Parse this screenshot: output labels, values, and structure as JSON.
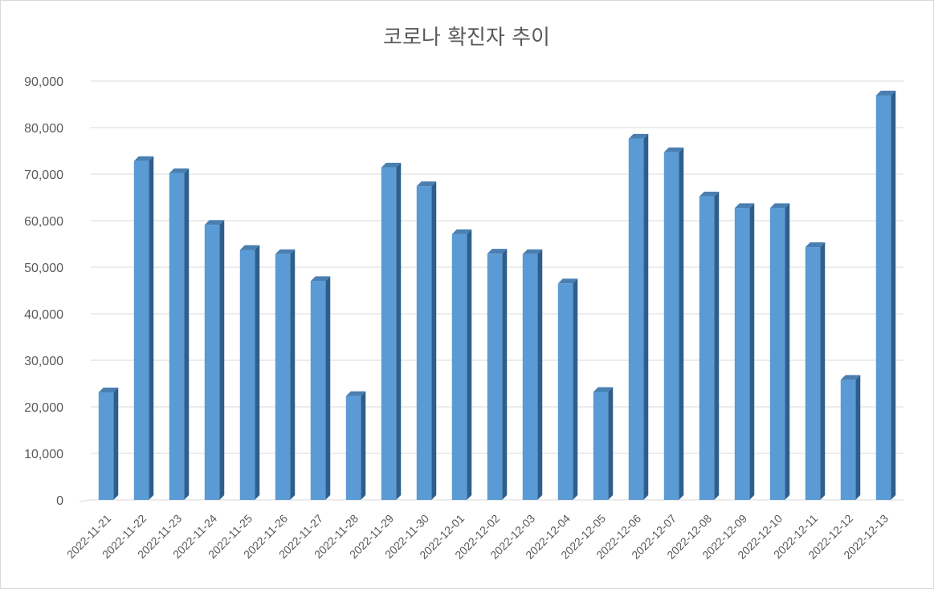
{
  "chart_data": {
    "type": "bar",
    "title": "코로나 확진자 추이",
    "xlabel": "",
    "ylabel": "",
    "categories": [
      "2022-11-21",
      "2022-11-22",
      "2022-11-23",
      "2022-11-24",
      "2022-11-25",
      "2022-11-26",
      "2022-11-27",
      "2022-11-28",
      "2022-11-29",
      "2022-11-30",
      "2022-12-01",
      "2022-12-02",
      "2022-12-03",
      "2022-12-04",
      "2022-12-05",
      "2022-12-06",
      "2022-12-07",
      "2022-12-08",
      "2022-12-09",
      "2022-12-10",
      "2022-12-11",
      "2022-12-12",
      "2022-12-13"
    ],
    "values": [
      23100,
      72800,
      70200,
      59100,
      53700,
      52800,
      47000,
      22300,
      71400,
      67400,
      57100,
      52900,
      52800,
      46500,
      23200,
      77600,
      74700,
      65200,
      62700,
      62700,
      54300,
      25800,
      86900
    ],
    "ylim": [
      0,
      90000
    ],
    "yticks": [
      0,
      10000,
      20000,
      30000,
      40000,
      50000,
      60000,
      70000,
      80000,
      90000
    ],
    "ytick_labels": [
      "0",
      "10,000",
      "20,000",
      "30,000",
      "40,000",
      "50,000",
      "60,000",
      "70,000",
      "80,000",
      "90,000"
    ],
    "grid": true,
    "legend": "none",
    "colors": {
      "front": "#5b9bd5",
      "side": "#2e5f8c",
      "top": "#4a7fb2",
      "grid": "#d9d9d9",
      "text": "#595959"
    }
  }
}
